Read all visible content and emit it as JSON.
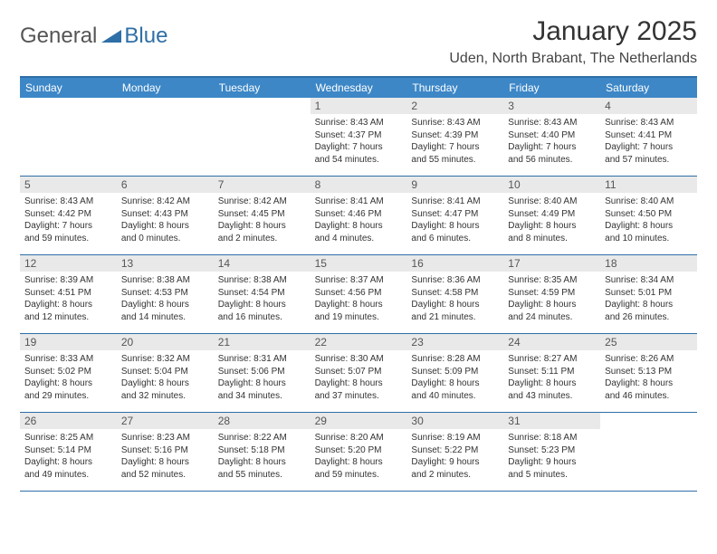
{
  "logo": {
    "text1": "General",
    "text2": "Blue"
  },
  "title": "January 2025",
  "location": "Uden, North Brabant, The Netherlands",
  "colors": {
    "header_bg": "#3d87c7",
    "border": "#2f6fa7",
    "dayband": "#e9e9e9",
    "logo_gray": "#555555",
    "logo_blue": "#2f6fa7"
  },
  "day_headers": [
    "Sunday",
    "Monday",
    "Tuesday",
    "Wednesday",
    "Thursday",
    "Friday",
    "Saturday"
  ],
  "weeks": [
    [
      {
        "empty": true
      },
      {
        "empty": true
      },
      {
        "empty": true
      },
      {
        "day": "1",
        "sunrise": "Sunrise: 8:43 AM",
        "sunset": "Sunset: 4:37 PM",
        "dl1": "Daylight: 7 hours",
        "dl2": "and 54 minutes."
      },
      {
        "day": "2",
        "sunrise": "Sunrise: 8:43 AM",
        "sunset": "Sunset: 4:39 PM",
        "dl1": "Daylight: 7 hours",
        "dl2": "and 55 minutes."
      },
      {
        "day": "3",
        "sunrise": "Sunrise: 8:43 AM",
        "sunset": "Sunset: 4:40 PM",
        "dl1": "Daylight: 7 hours",
        "dl2": "and 56 minutes."
      },
      {
        "day": "4",
        "sunrise": "Sunrise: 8:43 AM",
        "sunset": "Sunset: 4:41 PM",
        "dl1": "Daylight: 7 hours",
        "dl2": "and 57 minutes."
      }
    ],
    [
      {
        "day": "5",
        "sunrise": "Sunrise: 8:43 AM",
        "sunset": "Sunset: 4:42 PM",
        "dl1": "Daylight: 7 hours",
        "dl2": "and 59 minutes."
      },
      {
        "day": "6",
        "sunrise": "Sunrise: 8:42 AM",
        "sunset": "Sunset: 4:43 PM",
        "dl1": "Daylight: 8 hours",
        "dl2": "and 0 minutes."
      },
      {
        "day": "7",
        "sunrise": "Sunrise: 8:42 AM",
        "sunset": "Sunset: 4:45 PM",
        "dl1": "Daylight: 8 hours",
        "dl2": "and 2 minutes."
      },
      {
        "day": "8",
        "sunrise": "Sunrise: 8:41 AM",
        "sunset": "Sunset: 4:46 PM",
        "dl1": "Daylight: 8 hours",
        "dl2": "and 4 minutes."
      },
      {
        "day": "9",
        "sunrise": "Sunrise: 8:41 AM",
        "sunset": "Sunset: 4:47 PM",
        "dl1": "Daylight: 8 hours",
        "dl2": "and 6 minutes."
      },
      {
        "day": "10",
        "sunrise": "Sunrise: 8:40 AM",
        "sunset": "Sunset: 4:49 PM",
        "dl1": "Daylight: 8 hours",
        "dl2": "and 8 minutes."
      },
      {
        "day": "11",
        "sunrise": "Sunrise: 8:40 AM",
        "sunset": "Sunset: 4:50 PM",
        "dl1": "Daylight: 8 hours",
        "dl2": "and 10 minutes."
      }
    ],
    [
      {
        "day": "12",
        "sunrise": "Sunrise: 8:39 AM",
        "sunset": "Sunset: 4:51 PM",
        "dl1": "Daylight: 8 hours",
        "dl2": "and 12 minutes."
      },
      {
        "day": "13",
        "sunrise": "Sunrise: 8:38 AM",
        "sunset": "Sunset: 4:53 PM",
        "dl1": "Daylight: 8 hours",
        "dl2": "and 14 minutes."
      },
      {
        "day": "14",
        "sunrise": "Sunrise: 8:38 AM",
        "sunset": "Sunset: 4:54 PM",
        "dl1": "Daylight: 8 hours",
        "dl2": "and 16 minutes."
      },
      {
        "day": "15",
        "sunrise": "Sunrise: 8:37 AM",
        "sunset": "Sunset: 4:56 PM",
        "dl1": "Daylight: 8 hours",
        "dl2": "and 19 minutes."
      },
      {
        "day": "16",
        "sunrise": "Sunrise: 8:36 AM",
        "sunset": "Sunset: 4:58 PM",
        "dl1": "Daylight: 8 hours",
        "dl2": "and 21 minutes."
      },
      {
        "day": "17",
        "sunrise": "Sunrise: 8:35 AM",
        "sunset": "Sunset: 4:59 PM",
        "dl1": "Daylight: 8 hours",
        "dl2": "and 24 minutes."
      },
      {
        "day": "18",
        "sunrise": "Sunrise: 8:34 AM",
        "sunset": "Sunset: 5:01 PM",
        "dl1": "Daylight: 8 hours",
        "dl2": "and 26 minutes."
      }
    ],
    [
      {
        "day": "19",
        "sunrise": "Sunrise: 8:33 AM",
        "sunset": "Sunset: 5:02 PM",
        "dl1": "Daylight: 8 hours",
        "dl2": "and 29 minutes."
      },
      {
        "day": "20",
        "sunrise": "Sunrise: 8:32 AM",
        "sunset": "Sunset: 5:04 PM",
        "dl1": "Daylight: 8 hours",
        "dl2": "and 32 minutes."
      },
      {
        "day": "21",
        "sunrise": "Sunrise: 8:31 AM",
        "sunset": "Sunset: 5:06 PM",
        "dl1": "Daylight: 8 hours",
        "dl2": "and 34 minutes."
      },
      {
        "day": "22",
        "sunrise": "Sunrise: 8:30 AM",
        "sunset": "Sunset: 5:07 PM",
        "dl1": "Daylight: 8 hours",
        "dl2": "and 37 minutes."
      },
      {
        "day": "23",
        "sunrise": "Sunrise: 8:28 AM",
        "sunset": "Sunset: 5:09 PM",
        "dl1": "Daylight: 8 hours",
        "dl2": "and 40 minutes."
      },
      {
        "day": "24",
        "sunrise": "Sunrise: 8:27 AM",
        "sunset": "Sunset: 5:11 PM",
        "dl1": "Daylight: 8 hours",
        "dl2": "and 43 minutes."
      },
      {
        "day": "25",
        "sunrise": "Sunrise: 8:26 AM",
        "sunset": "Sunset: 5:13 PM",
        "dl1": "Daylight: 8 hours",
        "dl2": "and 46 minutes."
      }
    ],
    [
      {
        "day": "26",
        "sunrise": "Sunrise: 8:25 AM",
        "sunset": "Sunset: 5:14 PM",
        "dl1": "Daylight: 8 hours",
        "dl2": "and 49 minutes."
      },
      {
        "day": "27",
        "sunrise": "Sunrise: 8:23 AM",
        "sunset": "Sunset: 5:16 PM",
        "dl1": "Daylight: 8 hours",
        "dl2": "and 52 minutes."
      },
      {
        "day": "28",
        "sunrise": "Sunrise: 8:22 AM",
        "sunset": "Sunset: 5:18 PM",
        "dl1": "Daylight: 8 hours",
        "dl2": "and 55 minutes."
      },
      {
        "day": "29",
        "sunrise": "Sunrise: 8:20 AM",
        "sunset": "Sunset: 5:20 PM",
        "dl1": "Daylight: 8 hours",
        "dl2": "and 59 minutes."
      },
      {
        "day": "30",
        "sunrise": "Sunrise: 8:19 AM",
        "sunset": "Sunset: 5:22 PM",
        "dl1": "Daylight: 9 hours",
        "dl2": "and 2 minutes."
      },
      {
        "day": "31",
        "sunrise": "Sunrise: 8:18 AM",
        "sunset": "Sunset: 5:23 PM",
        "dl1": "Daylight: 9 hours",
        "dl2": "and 5 minutes."
      },
      {
        "empty": true
      }
    ]
  ]
}
